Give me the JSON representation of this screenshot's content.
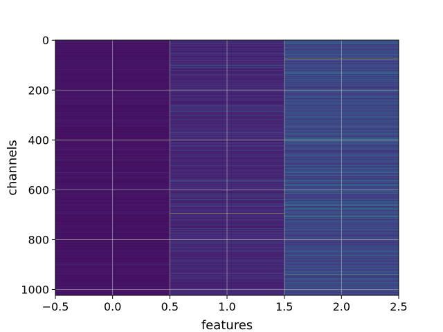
{
  "chart_data": {
    "type": "heatmap",
    "title": "",
    "xlabel": "features",
    "ylabel": "channels",
    "x_tick_labels": [
      "−0.5",
      "0.0",
      "0.5",
      "1.0",
      "1.5",
      "2.0",
      "2.5"
    ],
    "x_tick_values": [
      -0.5,
      0.0,
      0.5,
      1.0,
      1.5,
      2.0,
      2.5
    ],
    "y_tick_labels": [
      "0",
      "200",
      "400",
      "600",
      "800",
      "1000"
    ],
    "y_tick_values": [
      0,
      200,
      400,
      600,
      800,
      1000
    ],
    "xlim": [
      -0.5,
      2.5
    ],
    "ylim": [
      1023.5,
      -0.5
    ],
    "grid": true,
    "colormap": "viridis",
    "n_channels": 1024,
    "features": [
      0,
      1,
      2
    ],
    "column_base_level": [
      0.04,
      0.08,
      0.16
    ],
    "column_variation": [
      0.05,
      0.14,
      0.22
    ],
    "highlights": [
      {
        "feature": 0,
        "channel": 480,
        "value": 0.22
      },
      {
        "feature": 0,
        "channel": 530,
        "value": 0.2
      },
      {
        "feature": 0,
        "channel": 990,
        "value": 0.18
      },
      {
        "feature": 1,
        "channel": 15,
        "value": 0.32
      },
      {
        "feature": 1,
        "channel": 100,
        "value": 0.42
      },
      {
        "feature": 1,
        "channel": 110,
        "value": 0.38
      },
      {
        "feature": 1,
        "channel": 265,
        "value": 0.35
      },
      {
        "feature": 1,
        "channel": 300,
        "value": 0.42
      },
      {
        "feature": 1,
        "channel": 370,
        "value": 0.38
      },
      {
        "feature": 1,
        "channel": 565,
        "value": 0.55
      },
      {
        "feature": 1,
        "channel": 625,
        "value": 0.45
      },
      {
        "feature": 1,
        "channel": 640,
        "value": 0.5
      },
      {
        "feature": 1,
        "channel": 695,
        "value": 0.9
      },
      {
        "feature": 1,
        "channel": 755,
        "value": 0.4
      },
      {
        "feature": 1,
        "channel": 810,
        "value": 0.4
      },
      {
        "feature": 2,
        "channel": 15,
        "value": 0.55
      },
      {
        "feature": 2,
        "channel": 30,
        "value": 0.5
      },
      {
        "feature": 2,
        "channel": 75,
        "value": 1.0
      },
      {
        "feature": 2,
        "channel": 130,
        "value": 0.6
      },
      {
        "feature": 2,
        "channel": 200,
        "value": 0.55
      },
      {
        "feature": 2,
        "channel": 345,
        "value": 0.6
      },
      {
        "feature": 2,
        "channel": 405,
        "value": 0.55
      },
      {
        "feature": 2,
        "channel": 565,
        "value": 0.6
      },
      {
        "feature": 2,
        "channel": 580,
        "value": 0.55
      },
      {
        "feature": 2,
        "channel": 615,
        "value": 0.6
      },
      {
        "feature": 2,
        "channel": 660,
        "value": 0.62
      },
      {
        "feature": 2,
        "channel": 680,
        "value": 0.55
      },
      {
        "feature": 2,
        "channel": 705,
        "value": 0.72
      },
      {
        "feature": 2,
        "channel": 760,
        "value": 0.5
      },
      {
        "feature": 2,
        "channel": 865,
        "value": 0.55
      },
      {
        "feature": 2,
        "channel": 905,
        "value": 0.5
      },
      {
        "feature": 2,
        "channel": 940,
        "value": 0.78
      },
      {
        "feature": 2,
        "channel": 960,
        "value": 0.5
      }
    ]
  }
}
